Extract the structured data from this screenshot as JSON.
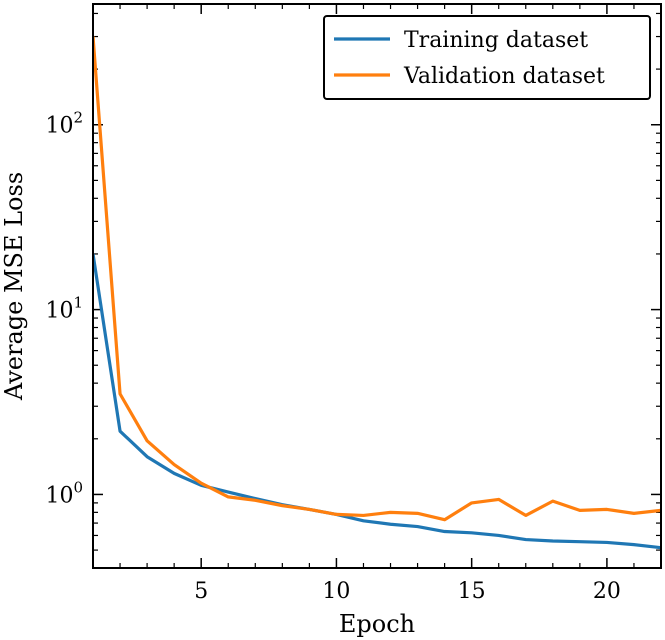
{
  "chart_data": {
    "type": "line",
    "xlabel": "Epoch",
    "ylabel": "Average MSE Loss",
    "xlim": [
      1,
      22
    ],
    "ylim": [
      0.4,
      450
    ],
    "yscale": "log",
    "x_ticks": [
      5,
      10,
      15,
      20
    ],
    "y_ticks": [
      {
        "value": 1,
        "mantissa": "10",
        "exponent": "0"
      },
      {
        "value": 10,
        "mantissa": "10",
        "exponent": "1"
      },
      {
        "value": 100,
        "mantissa": "10",
        "exponent": "2"
      }
    ],
    "legend_position": "top-right",
    "grid": false,
    "x": [
      1,
      2,
      3,
      4,
      5,
      6,
      7,
      8,
      9,
      10,
      11,
      12,
      13,
      14,
      15,
      16,
      17,
      18,
      19,
      20,
      21,
      22
    ],
    "series": [
      {
        "name": "Training dataset",
        "color": "#1f77b4",
        "values": [
          20,
          2.2,
          1.6,
          1.3,
          1.12,
          1.03,
          0.95,
          0.88,
          0.83,
          0.78,
          0.72,
          0.69,
          0.67,
          0.63,
          0.62,
          0.6,
          0.57,
          0.56,
          0.555,
          0.55,
          0.535,
          0.515
        ]
      },
      {
        "name": "Validation dataset",
        "color": "#ff7f0e",
        "values": [
          300,
          3.5,
          1.95,
          1.45,
          1.15,
          0.97,
          0.93,
          0.87,
          0.83,
          0.78,
          0.77,
          0.8,
          0.79,
          0.73,
          0.9,
          0.94,
          0.77,
          0.92,
          0.82,
          0.83,
          0.79,
          0.82
        ]
      }
    ]
  }
}
